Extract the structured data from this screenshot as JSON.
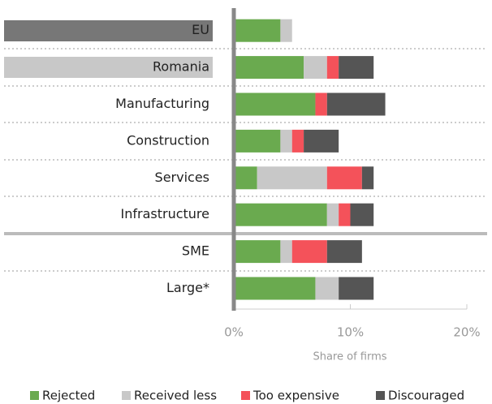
{
  "chart_data": {
    "type": "stacked-barh",
    "categories": [
      "EU",
      "Romania",
      "Manufacturing",
      "Construction",
      "Services",
      "Infrastructure",
      "SME",
      "Large*"
    ],
    "series": [
      {
        "name": "Rejected",
        "color": "#6aaa4f",
        "values": [
          4,
          6,
          7,
          4,
          2,
          8,
          4,
          7
        ]
      },
      {
        "name": "Received less",
        "color": "#c8c8c8",
        "values": [
          1,
          2,
          0,
          1,
          6,
          1,
          1,
          2
        ]
      },
      {
        "name": "Too expensive",
        "color": "#f4525a",
        "values": [
          0,
          1,
          1,
          1,
          3,
          1,
          3,
          0
        ]
      },
      {
        "name": "Discouraged",
        "color": "#555555",
        "values": [
          0,
          3,
          5,
          3,
          1,
          2,
          3,
          3
        ]
      }
    ],
    "xlim": [
      0,
      20
    ],
    "xticks": [
      {
        "value": 0,
        "label": "0%"
      },
      {
        "value": 10,
        "label": "10%"
      },
      {
        "value": 20,
        "label": "20%"
      }
    ],
    "x_label": "Share of firms"
  }
}
